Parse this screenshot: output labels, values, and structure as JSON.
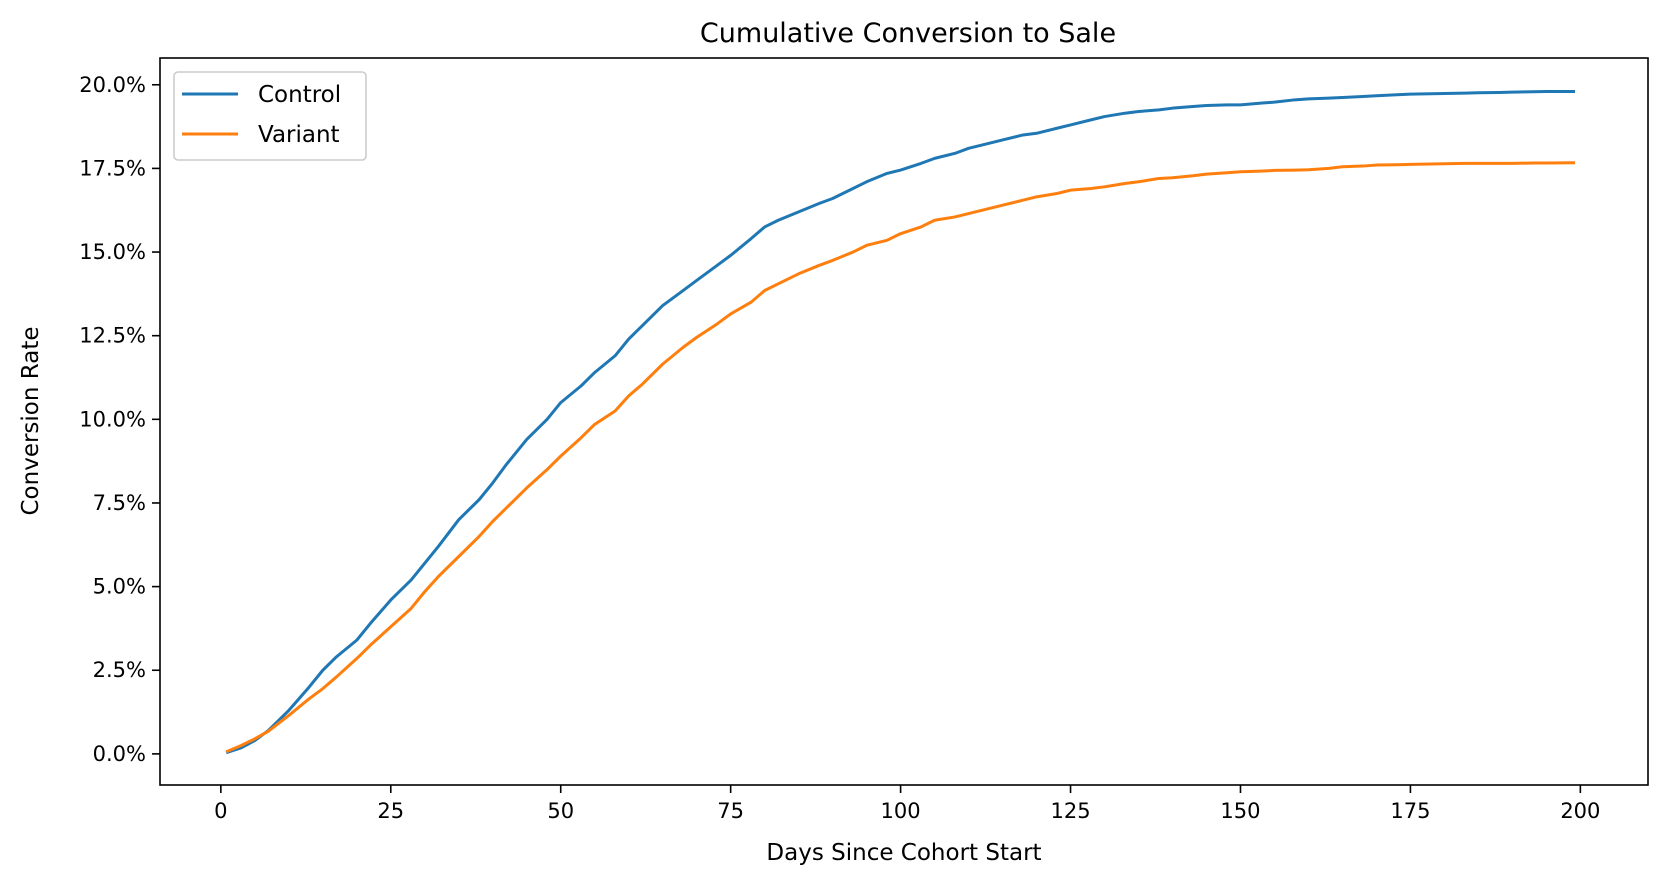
{
  "chart_data": {
    "type": "line",
    "title": "Cumulative Conversion to Sale",
    "xlabel": "Days Since Cohort Start",
    "ylabel": "Conversion Rate",
    "xlim": [
      -8.95,
      209.95
    ],
    "ylim": [
      -0.0093,
      0.208
    ],
    "xticks": [
      0,
      25,
      50,
      75,
      100,
      125,
      150,
      175,
      200
    ],
    "xtick_labels": [
      "0",
      "25",
      "50",
      "75",
      "100",
      "125",
      "150",
      "175",
      "200"
    ],
    "yticks": [
      0.0,
      0.025,
      0.05,
      0.075,
      0.1,
      0.125,
      0.15,
      0.175,
      0.2
    ],
    "ytick_labels": [
      "0.0%",
      "2.5%",
      "5.0%",
      "7.5%",
      "10.0%",
      "12.5%",
      "15.0%",
      "17.5%",
      "20.0%"
    ],
    "grid": false,
    "legend_position": "upper-left",
    "series": [
      {
        "name": "Control",
        "color": "#1f77b4",
        "x": [
          1,
          3,
          5,
          7,
          10,
          13,
          15,
          17,
          20,
          22,
          25,
          28,
          30,
          32,
          35,
          38,
          40,
          42,
          45,
          48,
          50,
          53,
          55,
          58,
          60,
          62,
          65,
          68,
          70,
          73,
          75,
          78,
          80,
          82,
          85,
          88,
          90,
          93,
          95,
          98,
          100,
          103,
          105,
          108,
          110,
          113,
          115,
          118,
          120,
          123,
          125,
          128,
          130,
          133,
          135,
          138,
          140,
          143,
          145,
          148,
          150,
          153,
          155,
          158,
          160,
          163,
          165,
          168,
          170,
          173,
          175,
          178,
          180,
          183,
          185,
          188,
          190,
          193,
          195,
          199
        ],
        "values": [
          0.0005,
          0.0018,
          0.004,
          0.007,
          0.013,
          0.02,
          0.025,
          0.029,
          0.034,
          0.039,
          0.046,
          0.052,
          0.057,
          0.062,
          0.07,
          0.076,
          0.081,
          0.0865,
          0.094,
          0.1,
          0.105,
          0.11,
          0.114,
          0.119,
          0.124,
          0.128,
          0.134,
          0.1385,
          0.1415,
          0.146,
          0.149,
          0.154,
          0.1575,
          0.1595,
          0.162,
          0.1645,
          0.166,
          0.169,
          0.171,
          0.1735,
          0.1745,
          0.1765,
          0.178,
          0.1795,
          0.181,
          0.1825,
          0.1835,
          0.185,
          0.1855,
          0.187,
          0.188,
          0.1895,
          0.1905,
          0.1915,
          0.192,
          0.1925,
          0.193,
          0.1935,
          0.1938,
          0.194,
          0.194,
          0.1945,
          0.1948,
          0.1955,
          0.1958,
          0.196,
          0.1962,
          0.1965,
          0.1967,
          0.197,
          0.1972,
          0.1973,
          0.1974,
          0.1975,
          0.1976,
          0.1977,
          0.1978,
          0.1979,
          0.198,
          0.198
        ]
      },
      {
        "name": "Variant",
        "color": "#ff7f0e",
        "x": [
          1,
          3,
          5,
          7,
          10,
          13,
          15,
          17,
          20,
          22,
          25,
          28,
          30,
          32,
          35,
          38,
          40,
          42,
          45,
          48,
          50,
          53,
          55,
          58,
          60,
          62,
          65,
          68,
          70,
          73,
          75,
          78,
          80,
          82,
          85,
          88,
          90,
          93,
          95,
          98,
          100,
          103,
          105,
          108,
          110,
          113,
          115,
          118,
          120,
          123,
          125,
          128,
          130,
          133,
          135,
          138,
          140,
          143,
          145,
          148,
          150,
          153,
          155,
          158,
          160,
          163,
          165,
          168,
          170,
          173,
          175,
          178,
          180,
          183,
          185,
          188,
          190,
          193,
          195,
          199
        ],
        "values": [
          0.0008,
          0.0025,
          0.0045,
          0.0068,
          0.0115,
          0.0165,
          0.0195,
          0.023,
          0.0285,
          0.0325,
          0.038,
          0.0435,
          0.0485,
          0.053,
          0.059,
          0.065,
          0.0695,
          0.0735,
          0.0795,
          0.085,
          0.089,
          0.0945,
          0.0985,
          0.1025,
          0.107,
          0.1105,
          0.1165,
          0.1215,
          0.1245,
          0.1285,
          0.1315,
          0.135,
          0.1385,
          0.1405,
          0.1435,
          0.146,
          0.1475,
          0.15,
          0.152,
          0.1535,
          0.1555,
          0.1575,
          0.1595,
          0.1605,
          0.1615,
          0.163,
          0.164,
          0.1655,
          0.1665,
          0.1675,
          0.1685,
          0.169,
          0.1695,
          0.1705,
          0.171,
          0.172,
          0.1722,
          0.1728,
          0.1733,
          0.1737,
          0.174,
          0.1742,
          0.1744,
          0.1745,
          0.1746,
          0.175,
          0.1755,
          0.1757,
          0.176,
          0.1761,
          0.1762,
          0.1763,
          0.1764,
          0.1765,
          0.1765,
          0.1765,
          0.1765,
          0.1766,
          0.1766,
          0.1767
        ]
      }
    ]
  }
}
